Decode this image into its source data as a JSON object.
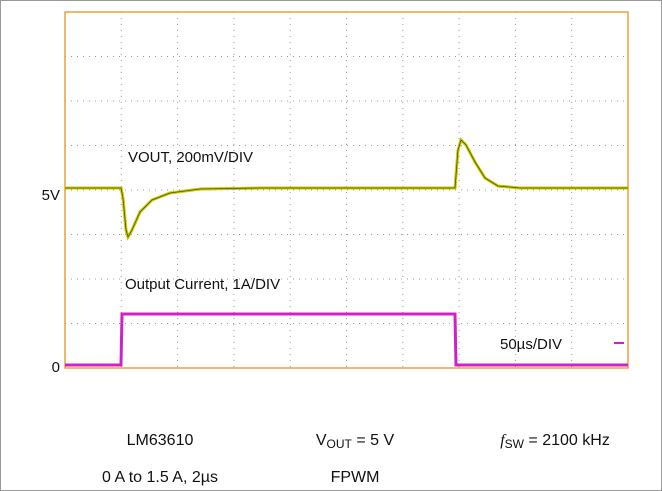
{
  "scope": {
    "vout_label": "VOUT, 200mV/DIV",
    "vout_level": "5V",
    "current_label": "Output Current, 1A/DIV",
    "current_level": "0",
    "timebase": "50µs/DIV"
  },
  "caption": {
    "device": "LM63610",
    "step": "0 A to 1.5 A, 2µs",
    "vout": {
      "symbol": "V",
      "subscript": "OUT",
      "rest": " = 5 V"
    },
    "mode": "FPWM",
    "fsw": {
      "symbol": "f",
      "subscript": "SW",
      "rest": " = 2100 kHz"
    }
  }
}
